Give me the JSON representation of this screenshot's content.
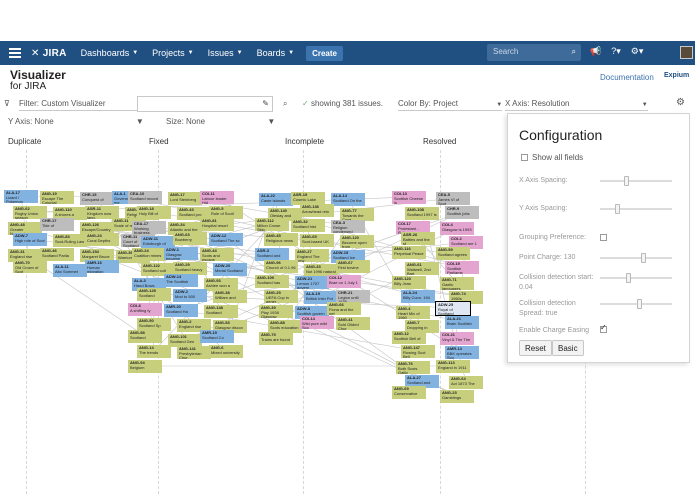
{
  "nav": {
    "logo": "JIRA",
    "menu": [
      {
        "label": "Dashboards"
      },
      {
        "label": "Projects"
      },
      {
        "label": "Issues"
      },
      {
        "label": "Boards"
      }
    ],
    "create_label": "Create",
    "search_placeholder": "Search"
  },
  "header": {
    "brand_line1": "Visualizer",
    "brand_line2": "for JIRA",
    "documentation_label": "Documentation",
    "expium_label": "Expium"
  },
  "toolbar": {
    "filter_label": "Filter: Custom Visualizer",
    "showing": "showing 381 issues.",
    "color_by": "Color By: Project",
    "x_axis": "X Axis: Resolution",
    "y_axis": "Y Axis: None",
    "size": "Size: None"
  },
  "columns": [
    "Duplicate",
    "Fixed",
    "Incomplete",
    "Resolved"
  ],
  "config": {
    "title": "Configuration",
    "show_all_fields": "Show all fields",
    "x_spacing": "X Axis Spacing:",
    "y_spacing": "Y Axis Spacing:",
    "grouping": "Grouping Preference:",
    "point_charge": "Point Charge: 130",
    "collision_start_1": "Collision detection start:",
    "collision_start_2": "0.04",
    "collision_spread_1": "Collision detection",
    "collision_spread_2": "Spread: true",
    "enable_easing": "Enable Charge Easing",
    "reset_label": "Reset",
    "basic_label": "Basic",
    "sliders": {
      "x_spacing": 0.35,
      "y_spacing": 0.22,
      "point_charge": 0.6,
      "collision_start": 0.38,
      "collision_spread": 0.55
    }
  },
  "colors": {
    "nav": "#205081",
    "green": "#c7cf7d",
    "blue": "#82b2e0",
    "grey": "#bdbdbd",
    "pink": "#e3a4cf"
  },
  "cards": [
    {
      "k": "ALA-17",
      "t": "Lizard / Pokemon",
      "c": "blue",
      "col": 0
    },
    {
      "k": "ANG-19",
      "t": "Escape The Colonial",
      "c": "green",
      "col": 0
    },
    {
      "k": "CHR-15",
      "t": "Conquest of",
      "c": "grey",
      "col": 0
    },
    {
      "k": "ALA-1",
      "t": "Government and me",
      "c": "blue",
      "col": 0
    },
    {
      "k": "ANG-62",
      "t": "Rugby Union season",
      "c": "green",
      "col": 0
    },
    {
      "k": "ANG-110",
      "t": "A shores a mount",
      "c": "green",
      "col": 0
    },
    {
      "k": "ASR-11",
      "t": "Kingdom now lang.",
      "c": "green",
      "col": 0
    },
    {
      "k": "ANG-54",
      "t": "Religions of Scotl",
      "c": "green",
      "col": 0
    },
    {
      "k": "ANG-48",
      "t": "Greater Norwegian",
      "c": "green",
      "col": 0
    },
    {
      "k": "CHR-17",
      "t": "Tide of",
      "c": "grey",
      "col": 0
    },
    {
      "k": "ANG-126",
      "t": "Escape/Country",
      "c": "green",
      "col": 0
    },
    {
      "k": "ANG-11",
      "t": "Scale of return",
      "c": "green",
      "col": 0
    },
    {
      "k": "ADW-7",
      "t": "High rule of Scot",
      "c": "blue",
      "col": 0
    },
    {
      "k": "ANG-83",
      "t": "Scot-Ruling Law",
      "c": "green",
      "col": 0
    },
    {
      "k": "ANG-23",
      "t": "Coral Depths",
      "c": "green",
      "col": 0
    },
    {
      "k": "CHR-11",
      "t": "Court of Scotland",
      "c": "grey",
      "col": 0
    },
    {
      "k": "ANG-31",
      "t": "England rise",
      "c": "green",
      "col": 0
    },
    {
      "k": "ANG-46",
      "t": "Scotland Parlia",
      "c": "green",
      "col": 0
    },
    {
      "k": "ANG-154",
      "t": "Margaret Bruce",
      "c": "green",
      "col": 0
    },
    {
      "k": "ANG-36",
      "t": "Warriors Edw.",
      "c": "green",
      "col": 0
    },
    {
      "k": "ANG-70",
      "t": "Old Crown of Scot",
      "c": "green",
      "col": 0
    },
    {
      "k": "ALA-11",
      "t": "Alto Sommet",
      "c": "blue",
      "col": 0
    },
    {
      "k": "AMR-16",
      "t": "Human migration",
      "c": "blue",
      "col": 0
    },
    {
      "k": "CEA-10",
      "t": "Scotland record",
      "c": "grey",
      "col": 1
    },
    {
      "k": "ANG-17",
      "t": "Lord Steinberg",
      "c": "green",
      "col": 1
    },
    {
      "k": "COI-11",
      "t": "Labour leader Hid",
      "c": "pink",
      "col": 1
    },
    {
      "k": "ANG-18",
      "t": "Holy Bill of",
      "c": "green",
      "col": 1
    },
    {
      "k": "ANG-43",
      "t": "Scotland pro",
      "c": "green",
      "col": 1
    },
    {
      "k": "ANG-5",
      "t": "Rule of Scotl",
      "c": "green",
      "col": 1
    },
    {
      "k": "CEA-17",
      "t": "Working business",
      "c": "grey",
      "col": 1
    },
    {
      "k": "ANG-34",
      "t": "Atlantic and the",
      "c": "green",
      "col": 1
    },
    {
      "k": "ANG-81",
      "t": "Hospital resort",
      "c": "green",
      "col": 1
    },
    {
      "k": "ADW-11",
      "t": "Edinburgh of",
      "c": "blue",
      "col": 1
    },
    {
      "k": "ANG-63",
      "t": "Bowberry",
      "c": "green",
      "col": 1
    },
    {
      "k": "ADW-12",
      "t": "Scotland The sc",
      "c": "blue",
      "col": 1
    },
    {
      "k": "ANG-24",
      "t": "Coalition mines",
      "c": "green",
      "col": 1
    },
    {
      "k": "ADW-1",
      "t": "Glasgow became",
      "c": "blue",
      "col": 1
    },
    {
      "k": "ANG-44",
      "t": "Scots and escape",
      "c": "green",
      "col": 1
    },
    {
      "k": "ANG-122",
      "t": "Scotland cult",
      "c": "green",
      "col": 1
    },
    {
      "k": "ANG-29",
      "t": "Scotland heavy",
      "c": "green",
      "col": 1
    },
    {
      "k": "ADW-20",
      "t": "Medal Scotland",
      "c": "blue",
      "col": 1
    },
    {
      "k": "ALA-3",
      "t": "Hand Bows",
      "c": "blue",
      "col": 1
    },
    {
      "k": "ADW-14",
      "t": "The Scottish",
      "c": "blue",
      "col": 1
    },
    {
      "k": "ANG-93",
      "t": "Ashlee won a",
      "c": "green",
      "col": 1
    },
    {
      "k": "ANG-125",
      "t": "Scotland",
      "c": "green",
      "col": 1
    },
    {
      "k": "ADW-2",
      "t": "Mod to 500",
      "c": "blue",
      "col": 1
    },
    {
      "k": "ANG-38",
      "t": "William and",
      "c": "green",
      "col": 1
    },
    {
      "k": "COI-8",
      "t": "A shifting ty",
      "c": "pink",
      "col": 1
    },
    {
      "k": "AMR-20",
      "t": "Scotland Ha",
      "c": "blue",
      "col": 1
    },
    {
      "k": "ANG-148",
      "t": "Scotland",
      "c": "green",
      "col": 1
    },
    {
      "k": "ANG-50",
      "t": "Scotland Sp",
      "c": "green",
      "col": 1
    },
    {
      "k": "ANG-2",
      "t": "England rise",
      "c": "green",
      "col": 1
    },
    {
      "k": "ANG-53",
      "t": "Glasgow discov",
      "c": "green",
      "col": 1
    },
    {
      "k": "ANG-58",
      "t": "Scotland",
      "c": "green",
      "col": 1
    },
    {
      "k": "ANG-101",
      "t": "Scotland Gen",
      "c": "green",
      "col": 1
    },
    {
      "k": "AMR-15",
      "t": "Scotland Co",
      "c": "blue",
      "col": 1
    },
    {
      "k": "ANG-14",
      "t": "The trends",
      "c": "green",
      "col": 1
    },
    {
      "k": "ANG-141",
      "t": "Presbyterian Chur",
      "c": "green",
      "col": 1
    },
    {
      "k": "ANG-6",
      "t": "Mixed university",
      "c": "green",
      "col": 1
    },
    {
      "k": "ANG-94",
      "t": "Belgium",
      "c": "green",
      "col": 1
    },
    {
      "k": "ALA-22",
      "t": "Caste Islands",
      "c": "blue",
      "col": 2
    },
    {
      "k": "ASR-19",
      "t": "Cosmic Lake",
      "c": "green",
      "col": 2
    },
    {
      "k": "ALA-14",
      "t": "Scotland On the",
      "c": "blue",
      "col": 2
    },
    {
      "k": "ANG-140",
      "t": "Oleslay and",
      "c": "green",
      "col": 2
    },
    {
      "k": "ANG-136",
      "t": "Arrowhead rein",
      "c": "green",
      "col": 2
    },
    {
      "k": "ANG-77",
      "t": "Towards the Cove",
      "c": "green",
      "col": 2
    },
    {
      "k": "ANG-112",
      "t": "Milton Crown Skip",
      "c": "green",
      "col": 2
    },
    {
      "k": "ANG-32",
      "t": "Scotland hist",
      "c": "green",
      "col": 2
    },
    {
      "k": "CEA-3",
      "t": "Religion condensed",
      "c": "grey",
      "col": 2
    },
    {
      "k": "ANG-45",
      "t": "Religious news",
      "c": "green",
      "col": 2
    },
    {
      "k": "ANG-65",
      "t": "Scot-based UK",
      "c": "green",
      "col": 2
    },
    {
      "k": "ANG-120",
      "t": "Become open from",
      "c": "green",
      "col": 2
    },
    {
      "k": "ASR-3",
      "t": "Scotland and",
      "c": "blue",
      "col": 2
    },
    {
      "k": "ANG-27",
      "t": "England The new",
      "c": "green",
      "col": 2
    },
    {
      "k": "ADW-15",
      "t": "Scotland Ice",
      "c": "blue",
      "col": 2
    },
    {
      "k": "ANG-96",
      "t": "Church of 0.1.96",
      "c": "green",
      "col": 2
    },
    {
      "k": "ANG-33",
      "t": "Not 1996 natural",
      "c": "green",
      "col": 2
    },
    {
      "k": "ANG-67",
      "t": "First bovine",
      "c": "green",
      "col": 2
    },
    {
      "k": "ANG-109",
      "t": "Scotland has",
      "c": "green",
      "col": 2
    },
    {
      "k": "ADW-21",
      "t": "Lemon 1707 govern",
      "c": "blue",
      "col": 2
    },
    {
      "k": "COI-12",
      "t": "Brae on 1 July 1",
      "c": "pink",
      "col": 2
    },
    {
      "k": "ANG-25",
      "t": "UEFA Cup in gener",
      "c": "green",
      "col": 2
    },
    {
      "k": "ALA-19",
      "t": "British Irish Pot",
      "c": "blue",
      "col": 2
    },
    {
      "k": "CHR-21",
      "t": "Legion until 1638",
      "c": "grey",
      "col": 2
    },
    {
      "k": "ANG-39",
      "t": "Play 1938 Glasgow",
      "c": "green",
      "col": 2
    },
    {
      "k": "ADW-8",
      "t": "Scottish govern",
      "c": "blue",
      "col": 2
    },
    {
      "k": "ANG-66",
      "t": "Fiona and the net",
      "c": "green",
      "col": 2
    },
    {
      "k": "ANG-88",
      "t": "Scots education",
      "c": "green",
      "col": 2
    },
    {
      "k": "COI-14",
      "t": "Wild pure wild Sco",
      "c": "pink",
      "col": 2
    },
    {
      "k": "ANG-41",
      "t": "Sold Gilded Chur",
      "c": "green",
      "col": 2
    },
    {
      "k": "ANG-75",
      "t": "Trains are found",
      "c": "green",
      "col": 2
    },
    {
      "k": "COI-13",
      "t": "Scottish Cheese is",
      "c": "pink",
      "col": 3
    },
    {
      "k": "CEA-5",
      "t": "James VI of Scot",
      "c": "grey",
      "col": 3
    },
    {
      "k": "ANG-108",
      "t": "Scotland 1997 is",
      "c": "green",
      "col": 3
    },
    {
      "k": "CHR-9",
      "t": "Scottish jobs",
      "c": "grey",
      "col": 3
    },
    {
      "k": "COI-17",
      "t": "Protestant - Refor",
      "c": "pink",
      "col": 3
    },
    {
      "k": "COI-4",
      "t": "Glasgow is 1993",
      "c": "pink",
      "col": 3
    },
    {
      "k": "ASR-26",
      "t": "Battles and the st",
      "c": "green",
      "col": 3
    },
    {
      "k": "COI-2",
      "t": "Scotland are 1",
      "c": "pink",
      "col": 3
    },
    {
      "k": "ANG-116",
      "t": "Perpetual Peace",
      "c": "green",
      "col": 3
    },
    {
      "k": "ANG-59",
      "t": "Scotland agrees",
      "c": "green",
      "col": 3
    },
    {
      "k": "ANG-61",
      "t": "Waltwell, 2nd Bart",
      "c": "green",
      "col": 3
    },
    {
      "k": "COI-19",
      "t": "Scottish Parliame",
      "c": "pink",
      "col": 3
    },
    {
      "k": "ANG-123",
      "t": "Billy Jean",
      "c": "green",
      "col": 3
    },
    {
      "k": "ANG-71",
      "t": "Gaelic languages",
      "c": "green",
      "col": 3
    },
    {
      "k": "ALA-24",
      "t": "Billy Conn. 194",
      "c": "blue",
      "col": 3
    },
    {
      "k": "ANG-74",
      "t": "1960s",
      "c": "green",
      "col": 3
    },
    {
      "k": "ANG-4",
      "t": "Heart Mix of 1960",
      "c": "green",
      "col": 3
    },
    {
      "k": "ADW-25",
      "t": "Royal of Scotland",
      "c": "blue",
      "col": 3,
      "selected": true
    },
    {
      "k": "ANG-7",
      "t": "Dropping in more",
      "c": "green",
      "col": 3
    },
    {
      "k": "ALA-21",
      "t": "Brain Scottish",
      "c": "blue",
      "col": 3
    },
    {
      "k": "ANG-12",
      "t": "Scottish Bell of",
      "c": "green",
      "col": 3
    },
    {
      "k": "COI-21",
      "t": "Vinyl & The The",
      "c": "pink",
      "col": 3
    },
    {
      "k": "ANG-147",
      "t": "Rowing Scot Bell",
      "c": "green",
      "col": 3
    },
    {
      "k": "AMR-13",
      "t": "BBK operates Sco",
      "c": "blue",
      "col": 3
    },
    {
      "k": "ANG-76",
      "t": "Both Scots Gallic",
      "c": "green",
      "col": 3
    },
    {
      "k": "ANG-113",
      "t": "England in 1911",
      "c": "green",
      "col": 3
    },
    {
      "k": "ALA-27",
      "t": "Scotland and",
      "c": "blue",
      "col": 3
    },
    {
      "k": "ANG-64",
      "t": "Act 1873 The",
      "c": "green",
      "col": 3
    },
    {
      "k": "ANG-69",
      "t": "Conservative",
      "c": "green",
      "col": 3
    },
    {
      "k": "ANG-23",
      "t": "Gamblings",
      "c": "green",
      "col": 3
    }
  ]
}
